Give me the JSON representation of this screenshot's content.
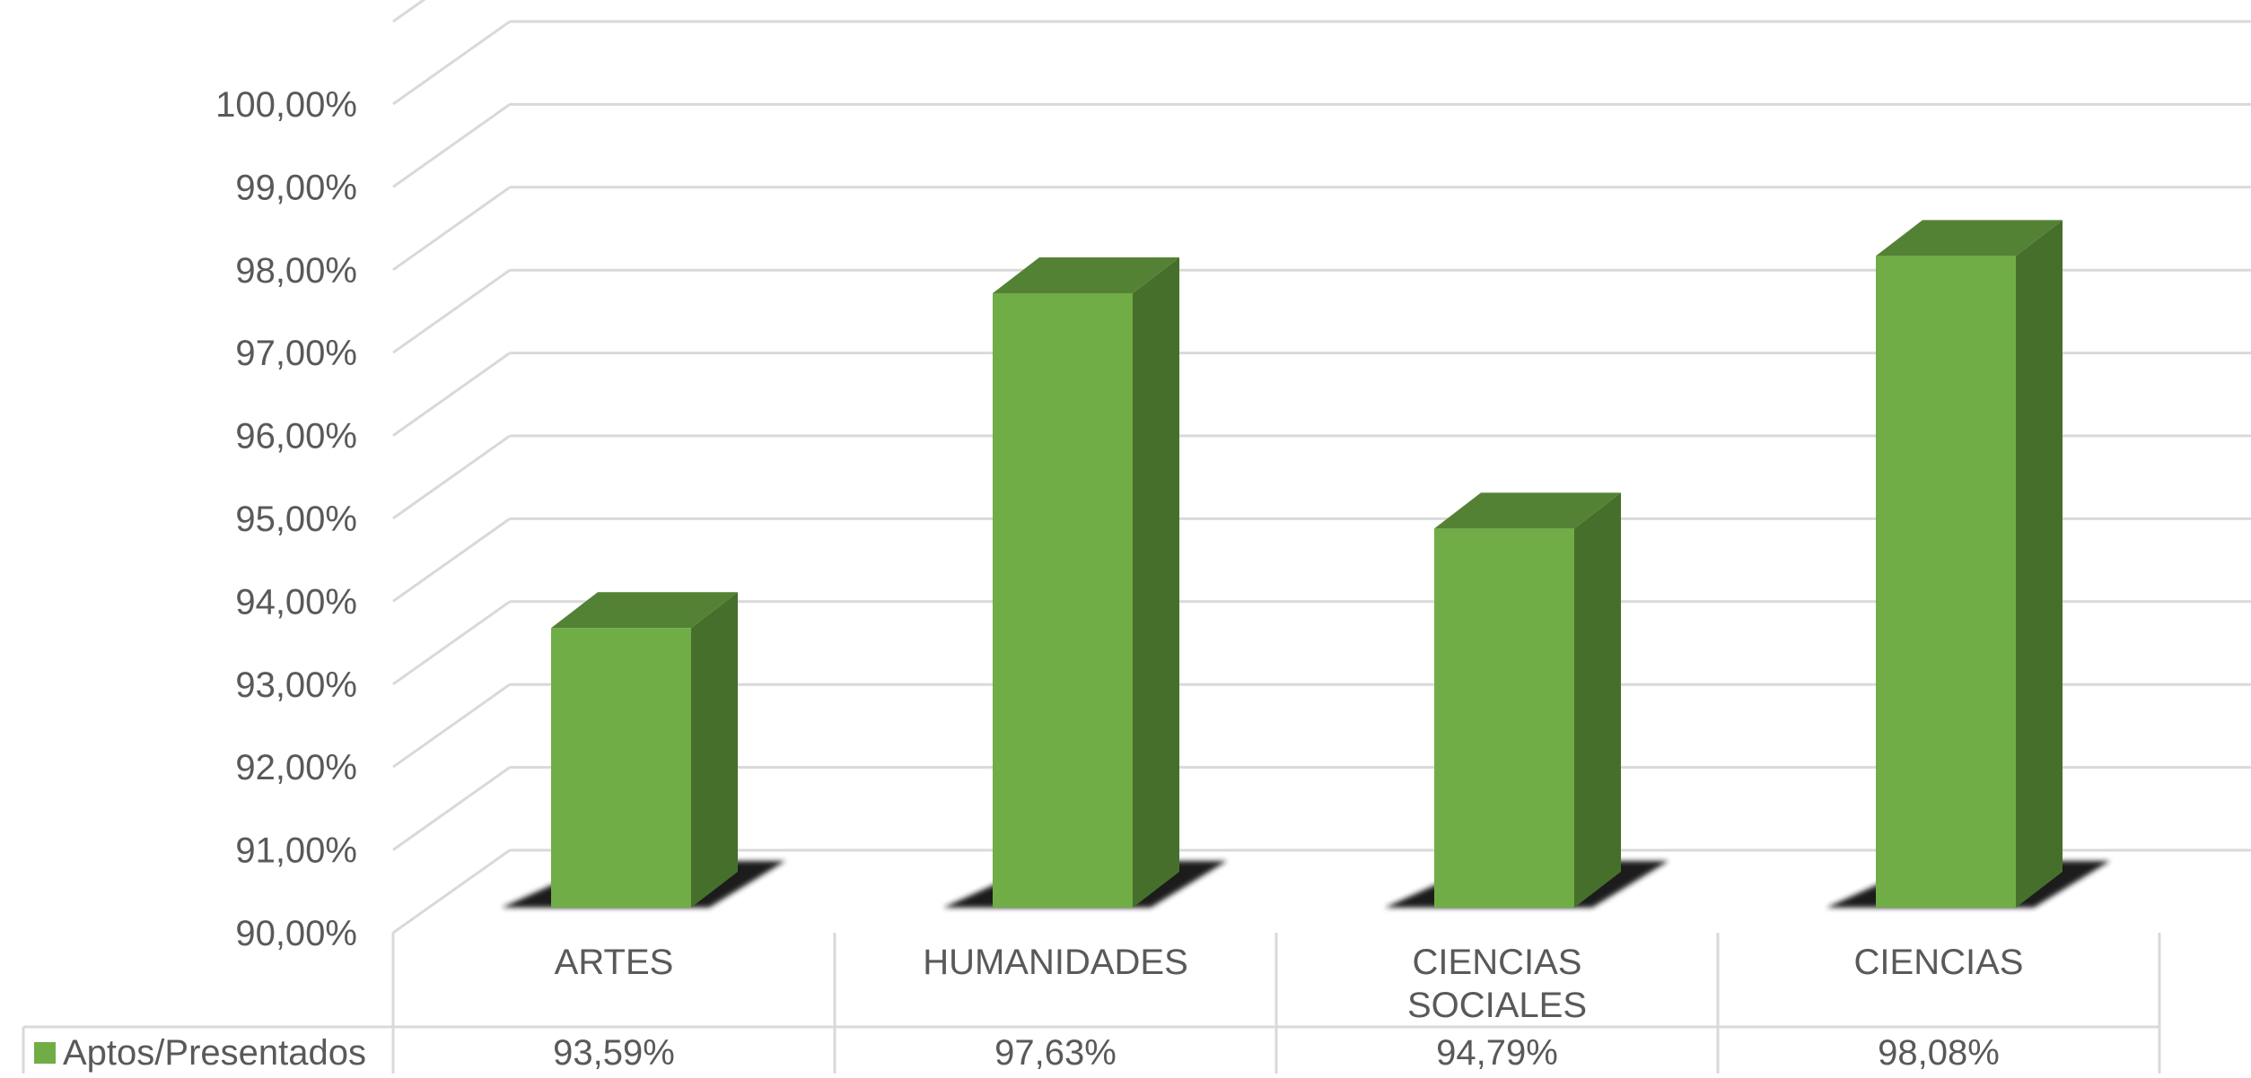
{
  "chart_data": {
    "type": "bar",
    "title": "",
    "xlabel": "",
    "ylabel": "",
    "ylim": [
      90,
      100
    ],
    "y_ticks": [
      "90,00%",
      "91,00%",
      "92,00%",
      "93,00%",
      "94,00%",
      "95,00%",
      "96,00%",
      "97,00%",
      "98,00%",
      "99,00%",
      "100,00%"
    ],
    "categories": [
      {
        "lines": [
          "ARTES"
        ]
      },
      {
        "lines": [
          "HUMANIDADES"
        ]
      },
      {
        "lines": [
          "CIENCIAS",
          "SOCIALES"
        ]
      },
      {
        "lines": [
          "CIENCIAS"
        ]
      }
    ],
    "series": [
      {
        "name": "Aptos/Presentados",
        "values": [
          93.59,
          97.63,
          94.79,
          98.08
        ],
        "labels": [
          "93,59%",
          "97,63%",
          "94,79%",
          "98,08%"
        ]
      }
    ],
    "grid": true,
    "style": "3d-column",
    "data_table": true,
    "legend_position": "data-table-left",
    "colors": {
      "bar_front": "#70AD47",
      "bar_top": "#548235",
      "bar_side": "#476F2C",
      "gridline": "#D9D9D9",
      "text": "#595959",
      "shadow": "#1a1a1a"
    }
  }
}
